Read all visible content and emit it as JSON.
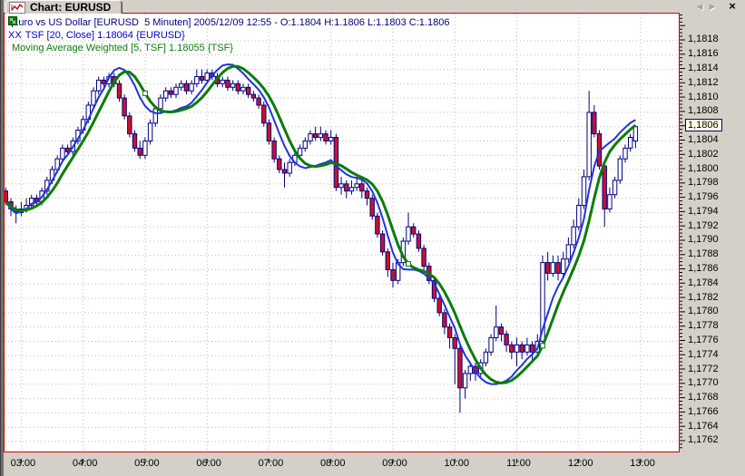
{
  "window": {
    "title": "Chart: EURUSD",
    "nav_back_glyph": "◀",
    "nav_fwd_glyph": "▶",
    "close_glyph": "×"
  },
  "legend": {
    "instrument": "Euro vs US Dollar [EURUSD  5 Minuten] 2005/12/09 12:55 - O:1.1804 H:1.1806 L:1.1803 C:1.1806",
    "tsf_prefix": "XX",
    "tsf": "TSF [20, Close] 1.18064 {EURUSD}",
    "mavg": "Moving Average Weighted [5, TSF] 1.18055 {TSF}"
  },
  "axes": {
    "y_labels": [
      "1,1818",
      "1,1816",
      "1,1814",
      "1,1812",
      "1,1810",
      "1,1808",
      "1,1806",
      "1,1804",
      "1,1802",
      "1,1800",
      "1,1798",
      "1,1796",
      "1,1794",
      "1,1792",
      "1,1790",
      "1,1788",
      "1,1786",
      "1,1784",
      "1,1782",
      "1,1780",
      "1,1778",
      "1,1776",
      "1,1774",
      "1,1772",
      "1,1770",
      "1,1768",
      "1,1766",
      "1,1764",
      "1,1762"
    ],
    "y_highlight": "1,1806",
    "x_labels": [
      "03:00",
      "04:00",
      "05:00",
      "06:00",
      "07:00",
      "08:00",
      "09:00",
      "10:00",
      "11:00",
      "12:00",
      "13:00"
    ]
  },
  "chart_data": {
    "type": "candlestick",
    "symbol": "EURUSD",
    "interval_minutes": 5,
    "start_time": "02:45",
    "end_time": "12:55",
    "date": "2005/12/09",
    "last_quote": {
      "open": 1.1804,
      "high": 1.1806,
      "low": 1.1803,
      "close": 1.1806
    },
    "ylim": [
      1.17606,
      1.18218
    ],
    "price_base": 1.17,
    "pip_scale": 0.0001,
    "y_tick_step": 0.0002,
    "y_minor_step": 5e-05,
    "indicators": [
      {
        "name": "TSF",
        "period": 20,
        "source": "Close",
        "color": "#2233dd",
        "last_value": 1.18064
      },
      {
        "name": "Moving Average Weighted",
        "period": 5,
        "source": "TSF",
        "color": "#0a7d0a",
        "last_value": 1.18055
      }
    ],
    "marker_indices": [
      27,
      78,
      104
    ],
    "colors": {
      "up_fill": "#ffffff",
      "down_fill": "#cc1128",
      "outline": "#000080",
      "grid": "#b9b9b9",
      "plot_border": "#d40000",
      "highlight_bg": "#ffffe0"
    },
    "candles_ohlc_pips": [
      [
        97,
        97.5,
        95,
        95.5
      ],
      [
        95.5,
        96,
        93.5,
        94.5
      ],
      [
        94.5,
        95,
        92.5,
        94
      ],
      [
        94,
        95.5,
        93.5,
        94.5
      ],
      [
        94.5,
        96,
        94,
        95
      ],
      [
        95,
        96.5,
        94.5,
        96
      ],
      [
        96,
        96.5,
        95,
        95.5
      ],
      [
        95.5,
        97.5,
        95,
        97
      ],
      [
        97,
        99,
        96.5,
        98.5
      ],
      [
        98.5,
        100.5,
        98,
        100
      ],
      [
        100,
        102,
        99.5,
        101.5
      ],
      [
        101.5,
        103.5,
        101,
        103
      ],
      [
        103,
        103.5,
        102,
        102.5
      ],
      [
        102.5,
        104.5,
        102,
        104
      ],
      [
        104,
        106,
        103.5,
        105.5
      ],
      [
        105.5,
        107.5,
        105,
        107
      ],
      [
        107,
        109.5,
        106.5,
        109
      ],
      [
        109,
        111.5,
        108.5,
        111
      ],
      [
        111,
        113,
        110.5,
        112.5
      ],
      [
        112.5,
        113,
        111.5,
        112
      ],
      [
        112,
        113.5,
        111.5,
        113
      ],
      [
        113,
        113.5,
        111.5,
        112
      ],
      [
        112,
        112.5,
        109.5,
        110
      ],
      [
        110,
        110.5,
        107,
        107.5
      ],
      [
        107.5,
        108,
        104.5,
        105
      ],
      [
        105,
        105.5,
        102.5,
        103
      ],
      [
        103,
        104,
        101.5,
        102
      ],
      [
        102,
        104.5,
        101.5,
        104
      ],
      [
        104,
        107,
        103.5,
        106.5
      ],
      [
        106.5,
        109,
        106,
        108.5
      ],
      [
        108.5,
        110.5,
        108,
        110
      ],
      [
        110,
        111.5,
        109.5,
        111
      ],
      [
        111,
        111.5,
        110,
        110.5
      ],
      [
        110.5,
        112,
        110,
        111.5
      ],
      [
        111.5,
        112.5,
        111,
        112
      ],
      [
        112,
        112.5,
        110.5,
        111
      ],
      [
        111,
        112.5,
        110.5,
        112
      ],
      [
        112,
        114,
        111.5,
        113
      ],
      [
        113,
        114,
        112,
        112.5
      ],
      [
        112.5,
        114,
        112,
        113.5
      ],
      [
        113.5,
        114,
        112.5,
        113
      ],
      [
        113,
        113.5,
        111.5,
        112
      ],
      [
        112,
        113,
        111.5,
        112.5
      ],
      [
        112.5,
        113,
        111,
        111.5
      ],
      [
        111.5,
        112.5,
        111,
        112
      ],
      [
        112,
        112.5,
        110.5,
        111
      ],
      [
        111,
        112,
        110.5,
        111.5
      ],
      [
        111.5,
        112,
        110,
        110.5
      ],
      [
        110.5,
        111,
        109.5,
        110
      ],
      [
        110,
        110.5,
        108.5,
        109
      ],
      [
        109,
        109.5,
        106,
        106.5
      ],
      [
        106.5,
        107,
        103.5,
        104
      ],
      [
        104,
        104.5,
        101,
        101.5
      ],
      [
        101.5,
        102,
        99.5,
        100
      ],
      [
        100,
        101,
        97.5,
        99.5
      ],
      [
        99.5,
        101.5,
        99,
        101
      ],
      [
        101,
        102.5,
        100.5,
        102
      ],
      [
        102,
        103.5,
        101.5,
        103
      ],
      [
        103,
        104.5,
        102.5,
        104
      ],
      [
        104,
        105.5,
        103.5,
        105
      ],
      [
        105,
        106,
        104,
        104.5
      ],
      [
        104.5,
        106,
        104,
        105
      ],
      [
        105,
        105.5,
        103.5,
        104
      ],
      [
        104,
        105.5,
        103.5,
        104.5
      ],
      [
        104.5,
        105,
        97,
        97.5
      ],
      [
        97.5,
        99,
        96.5,
        98
      ],
      [
        98,
        98.5,
        96,
        97
      ],
      [
        97,
        98.5,
        96.5,
        97.5
      ],
      [
        97.5,
        99,
        97,
        98
      ],
      [
        98,
        98.5,
        96,
        97
      ],
      [
        97,
        97.5,
        95,
        96
      ],
      [
        96,
        96.5,
        93,
        93.5
      ],
      [
        93.5,
        94,
        90.5,
        91
      ],
      [
        91,
        91.5,
        88,
        88.5
      ],
      [
        88.5,
        89,
        85,
        86
      ],
      [
        86,
        87,
        83.5,
        84.5
      ],
      [
        84.5,
        87.5,
        84,
        87
      ],
      [
        87,
        90.5,
        86.5,
        90
      ],
      [
        90,
        94,
        89.5,
        92
      ],
      [
        92,
        92.5,
        90.5,
        91
      ],
      [
        91,
        91.5,
        88.5,
        89
      ],
      [
        89,
        89.5,
        86,
        86.5
      ],
      [
        86.5,
        87,
        84,
        84.5
      ],
      [
        84.5,
        85,
        81.5,
        82
      ],
      [
        82,
        82.5,
        79.5,
        80
      ],
      [
        80,
        80.5,
        77,
        78
      ],
      [
        78,
        78.5,
        75,
        76.5
      ],
      [
        76.5,
        77,
        70,
        75
      ],
      [
        75,
        75.5,
        66,
        69.5
      ],
      [
        69.5,
        72,
        68,
        71.5
      ],
      [
        71.5,
        73,
        70.5,
        72.5
      ],
      [
        72.5,
        73,
        70.5,
        71.5
      ],
      [
        71.5,
        73.5,
        71,
        73
      ],
      [
        73,
        75,
        72.5,
        74.5
      ],
      [
        74.5,
        77,
        74,
        76.5
      ],
      [
        76.5,
        81,
        76,
        78
      ],
      [
        78,
        78.5,
        76,
        77
      ],
      [
        77,
        77.5,
        74.5,
        75.5
      ],
      [
        75.5,
        76,
        73.5,
        74.5
      ],
      [
        74.5,
        76.5,
        72.5,
        75.5
      ],
      [
        75.5,
        76,
        73.5,
        74.5
      ],
      [
        74.5,
        76.5,
        74,
        75.5
      ],
      [
        75.5,
        76,
        73,
        74.5
      ],
      [
        74.5,
        77,
        74,
        76
      ],
      [
        76,
        88,
        75.5,
        87
      ],
      [
        87,
        88.5,
        84.5,
        85.5
      ],
      [
        85.5,
        88,
        85,
        87
      ],
      [
        87,
        88,
        84.5,
        85.5
      ],
      [
        85.5,
        88.5,
        85,
        87.5
      ],
      [
        87.5,
        90.5,
        87,
        89.5
      ],
      [
        89.5,
        93,
        89,
        92
      ],
      [
        92,
        96,
        91.5,
        95
      ],
      [
        95,
        100,
        94.5,
        99
      ],
      [
        99,
        111,
        98.5,
        108
      ],
      [
        108,
        109,
        104.5,
        105
      ],
      [
        105,
        105.5,
        100,
        100.5
      ],
      [
        100.5,
        101,
        92,
        94.5
      ],
      [
        94.5,
        97.5,
        94,
        96.5
      ],
      [
        96.5,
        99,
        96,
        98.5
      ],
      [
        98.5,
        102,
        98,
        101.5
      ],
      [
        101.5,
        103.5,
        101,
        103
      ],
      [
        103,
        105,
        102.5,
        104.5
      ],
      [
        104,
        106,
        103,
        106
      ]
    ]
  }
}
